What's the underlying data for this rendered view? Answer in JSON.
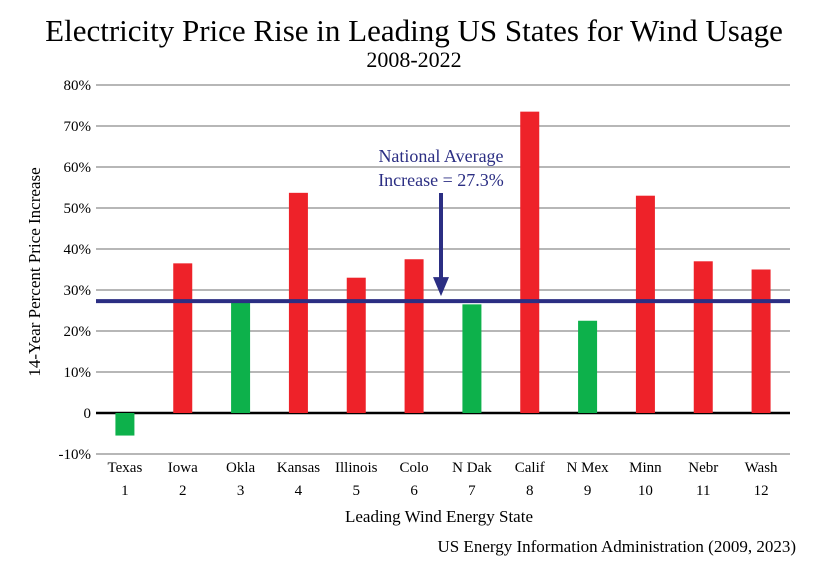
{
  "chart_data": {
    "type": "bar",
    "title": "Electricity Price Rise in Leading US States for Wind Usage",
    "subtitle": "2008-2022",
    "xlabel": "Leading Wind Energy State",
    "ylabel": "14-Year Percent Price Increase",
    "source": "US Energy Information Administration (2009, 2023)",
    "ylim": [
      -10,
      80
    ],
    "y_ticks": [
      {
        "value": 80,
        "label": "80%"
      },
      {
        "value": 70,
        "label": "70%"
      },
      {
        "value": 60,
        "label": "60%"
      },
      {
        "value": 50,
        "label": "50%"
      },
      {
        "value": 40,
        "label": "40%"
      },
      {
        "value": 30,
        "label": "30%"
      },
      {
        "value": 20,
        "label": "20%"
      },
      {
        "value": 10,
        "label": "10%"
      },
      {
        "value": 0,
        "label": "0"
      },
      {
        "value": -10,
        "label": "-10%"
      }
    ],
    "grid": true,
    "categories": [
      "Texas",
      "Iowa",
      "Okla",
      "Kansas",
      "Illinois",
      "Colo",
      "N Dak",
      "Calif",
      "N Mex",
      "Minn",
      "Nebr",
      "Wash"
    ],
    "rank_labels": [
      "1",
      "2",
      "3",
      "4",
      "5",
      "6",
      "7",
      "8",
      "9",
      "10",
      "11",
      "12"
    ],
    "values": [
      -5.5,
      36.5,
      27,
      53.7,
      33,
      37.5,
      26.5,
      73.5,
      22.5,
      53,
      37,
      35
    ],
    "colors": {
      "above_average": "#ee2229",
      "below_average": "#0db14b",
      "average_line": "#2b2e83",
      "grid": "#8c8c8c",
      "axis": "#000000"
    },
    "reference_line": {
      "value": 27.3,
      "label_line1": "National Average",
      "label_line2": "Increase = 27.3%"
    }
  }
}
